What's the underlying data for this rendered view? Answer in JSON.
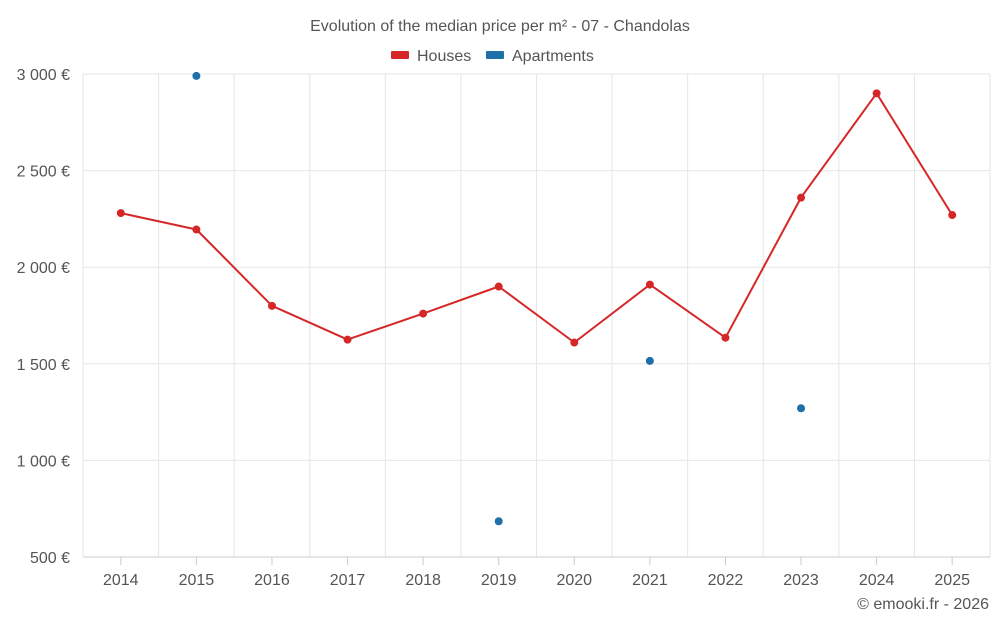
{
  "chart_data": {
    "type": "line",
    "title": "Evolution of the median price per m² - 07 - Chandolas",
    "categories": [
      "2014",
      "2015",
      "2016",
      "2017",
      "2018",
      "2019",
      "2020",
      "2021",
      "2022",
      "2023",
      "2024",
      "2025"
    ],
    "series": [
      {
        "name": "Houses",
        "color": "#d62728",
        "values": [
          2280,
          2195,
          1800,
          1625,
          1760,
          1900,
          1610,
          1910,
          1635,
          2360,
          2900,
          2270
        ]
      },
      {
        "name": "Apartments",
        "color": "#1f6fa8",
        "values": [
          null,
          2990,
          null,
          null,
          null,
          685,
          null,
          1515,
          null,
          1270,
          null,
          null
        ]
      }
    ],
    "y_ticks": [
      "500 €",
      "1 000 €",
      "1 500 €",
      "2 000 €",
      "2 500 €",
      "3 000 €"
    ],
    "y_tick_values": [
      500,
      1000,
      1500,
      2000,
      2500,
      3000
    ],
    "ylim": [
      500,
      3000
    ],
    "xlabel": "",
    "ylabel": "",
    "legend_position": "top-center",
    "grid": true
  },
  "credit": "© emooki.fr - 2026"
}
